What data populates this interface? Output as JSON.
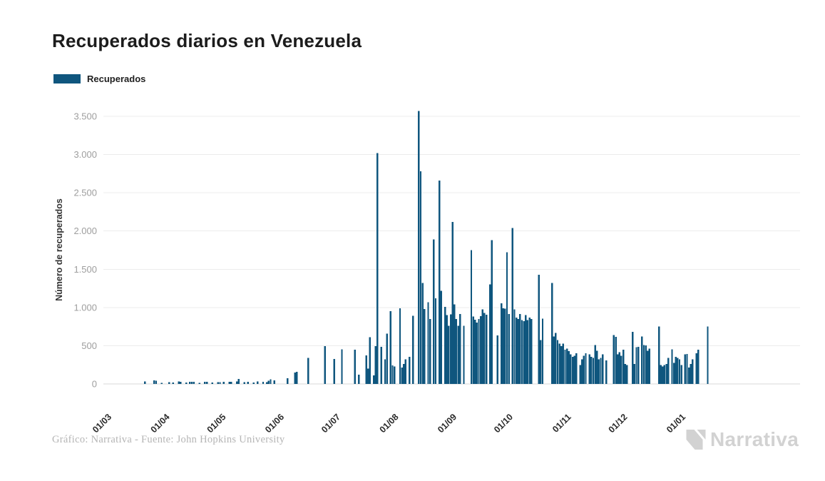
{
  "header": {
    "title": "Recuperados diarios en Venezuela"
  },
  "legend": {
    "label": "Recuperados",
    "swatch_color": "#0F567E"
  },
  "footer": {
    "credit": "Gráfico: Narrativa - Fuente: John Hopkins University",
    "brand": "Narrativa"
  },
  "chart_data": {
    "type": "bar",
    "title": "Recuperados diarios en Venezuela",
    "ylabel": "Número de recuperados",
    "ylim": [
      0,
      3700
    ],
    "grid": "horizontal",
    "legend_position": "top-left",
    "bar_color": "#0F567E",
    "y_tick_values": [
      0,
      500,
      1000,
      1500,
      2000,
      2500,
      3000,
      3500
    ],
    "y_tick_labels": [
      "0",
      "500",
      "1.000",
      "1.500",
      "2.000",
      "2.500",
      "3.000",
      "3.500"
    ],
    "x_tick_labels": [
      "01/03",
      "01/04",
      "01/05",
      "01/06",
      "01/07",
      "01/08",
      "01/09",
      "01/10",
      "01/11",
      "01/12",
      "01/01"
    ],
    "x_tick_day_indices": [
      0,
      31,
      61,
      92,
      122,
      153,
      184,
      214,
      245,
      275,
      306
    ],
    "series": [
      {
        "name": "Recuperados",
        "start_day_label": "01/03",
        "daily_values": [
          0,
          0,
          0,
          0,
          0,
          0,
          0,
          0,
          0,
          0,
          0,
          0,
          0,
          0,
          0,
          0,
          0,
          0,
          0,
          0,
          0,
          34,
          0,
          0,
          0,
          0,
          45,
          41,
          0,
          0,
          12,
          0,
          0,
          0,
          25,
          0,
          20,
          0,
          0,
          32,
          30,
          0,
          0,
          18,
          0,
          30,
          28,
          26,
          0,
          0,
          15,
          0,
          0,
          28,
          26,
          0,
          0,
          20,
          0,
          0,
          25,
          22,
          0,
          30,
          0,
          0,
          28,
          26,
          0,
          0,
          35,
          65,
          0,
          0,
          25,
          0,
          30,
          0,
          0,
          20,
          0,
          35,
          0,
          0,
          30,
          0,
          25,
          40,
          59,
          0,
          45,
          0,
          0,
          0,
          0,
          0,
          0,
          75,
          0,
          0,
          0,
          150,
          160,
          0,
          0,
          0,
          0,
          0,
          340,
          0,
          0,
          0,
          0,
          0,
          0,
          0,
          0,
          495,
          0,
          0,
          0,
          0,
          325,
          0,
          0,
          0,
          455,
          0,
          0,
          0,
          0,
          0,
          0,
          450,
          0,
          120,
          0,
          0,
          0,
          375,
          200,
          610,
          0,
          110,
          495,
          3020,
          0,
          485,
          0,
          320,
          660,
          0,
          950,
          245,
          230,
          0,
          0,
          990,
          215,
          260,
          320,
          0,
          355,
          0,
          890,
          0,
          0,
          3570,
          2780,
          1320,
          980,
          0,
          1070,
          850,
          0,
          1890,
          1120,
          0,
          2660,
          1220,
          0,
          1010,
          900,
          760,
          910,
          2120,
          1040,
          850,
          760,
          915,
          0,
          760,
          0,
          0,
          0,
          1750,
          880,
          840,
          805,
          850,
          885,
          975,
          930,
          905,
          0,
          1300,
          1880,
          0,
          0,
          634,
          0,
          1054,
          990,
          985,
          1720,
          915,
          0,
          2040,
          977,
          870,
          850,
          915,
          836,
          820,
          900,
          837,
          868,
          850,
          0,
          0,
          0,
          1430,
          572,
          852,
          0,
          0,
          0,
          0,
          1320,
          619,
          666,
          572,
          526,
          495,
          526,
          448,
          464,
          430,
          386,
          355,
          370,
          401,
          0,
          246,
          324,
          370,
          401,
          0,
          386,
          355,
          340,
          510,
          432,
          323,
          339,
          386,
          0,
          308,
          0,
          0,
          0,
          640,
          615,
          386,
          417,
          370,
          448,
          261,
          246,
          0,
          0,
          681,
          261,
          479,
          485,
          0,
          619,
          510,
          504,
          432,
          463,
          0,
          0,
          0,
          0,
          752,
          246,
          230,
          246,
          261,
          339,
          0,
          454,
          277,
          355,
          339,
          323,
          246,
          0,
          386,
          392,
          215,
          261,
          323,
          0,
          401,
          448,
          0,
          0,
          0,
          0,
          752
        ]
      }
    ]
  }
}
